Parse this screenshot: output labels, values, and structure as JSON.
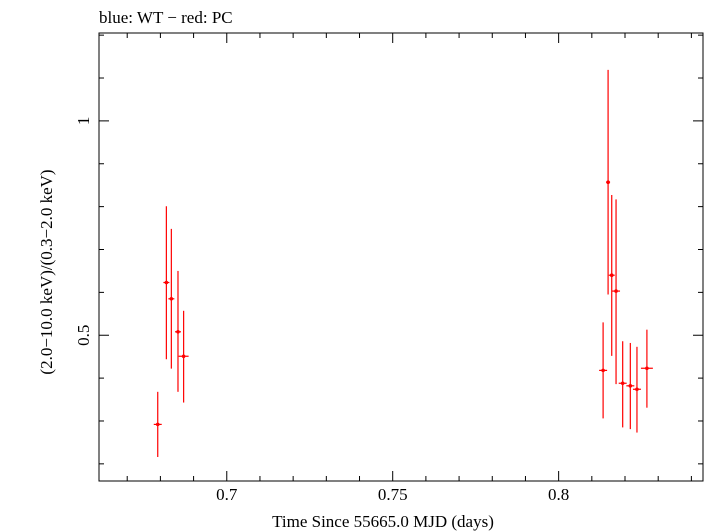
{
  "chart_data": {
    "type": "scatter",
    "title": "blue: WT − red: PC",
    "xlabel": "Time Since 55665.0 MJD (days)",
    "ylabel": "(2.0−10.0 keV)/(0.3−2.0 keV)",
    "xlim": [
      0.6615,
      0.8435
    ],
    "ylim": [
      0.16,
      1.205
    ],
    "xticks": [
      {
        "value": 0.7,
        "label": "0.7"
      },
      {
        "value": 0.75,
        "label": "0.75"
      },
      {
        "value": 0.8,
        "label": "0.8"
      }
    ],
    "yticks": [
      {
        "value": 0.5,
        "label": "0.5"
      },
      {
        "value": 1.0,
        "label": "1"
      }
    ],
    "grid": false,
    "colors": {
      "PC": "#ff0000",
      "WT": "#0000ff"
    },
    "series": [
      {
        "name": "PC",
        "color": "#ff0000",
        "points": [
          {
            "x": 0.6792,
            "y": 0.292,
            "xerr": 0.0012,
            "ylo": 0.216,
            "yhi": 0.368
          },
          {
            "x": 0.6818,
            "y": 0.623,
            "xerr": 0.0009,
            "ylo": 0.444,
            "yhi": 0.801
          },
          {
            "x": 0.6833,
            "y": 0.585,
            "xerr": 0.0009,
            "ylo": 0.422,
            "yhi": 0.748
          },
          {
            "x": 0.6853,
            "y": 0.508,
            "xerr": 0.0009,
            "ylo": 0.368,
            "yhi": 0.65
          },
          {
            "x": 0.687,
            "y": 0.451,
            "xerr": 0.0015,
            "ylo": 0.343,
            "yhi": 0.557
          },
          {
            "x": 0.8134,
            "y": 0.418,
            "xerr": 0.0012,
            "ylo": 0.306,
            "yhi": 0.53
          },
          {
            "x": 0.8149,
            "y": 0.857,
            "xerr": 0.0006,
            "ylo": 0.595,
            "yhi": 1.119
          },
          {
            "x": 0.816,
            "y": 0.64,
            "xerr": 0.0009,
            "ylo": 0.452,
            "yhi": 0.827
          },
          {
            "x": 0.8173,
            "y": 0.603,
            "xerr": 0.0012,
            "ylo": 0.386,
            "yhi": 0.817
          },
          {
            "x": 0.8193,
            "y": 0.388,
            "xerr": 0.0012,
            "ylo": 0.285,
            "yhi": 0.486
          },
          {
            "x": 0.8216,
            "y": 0.382,
            "xerr": 0.0012,
            "ylo": 0.281,
            "yhi": 0.482
          },
          {
            "x": 0.8236,
            "y": 0.374,
            "xerr": 0.0012,
            "ylo": 0.273,
            "yhi": 0.473
          },
          {
            "x": 0.8266,
            "y": 0.423,
            "xerr": 0.0018,
            "ylo": 0.331,
            "yhi": 0.513
          }
        ]
      }
    ]
  }
}
